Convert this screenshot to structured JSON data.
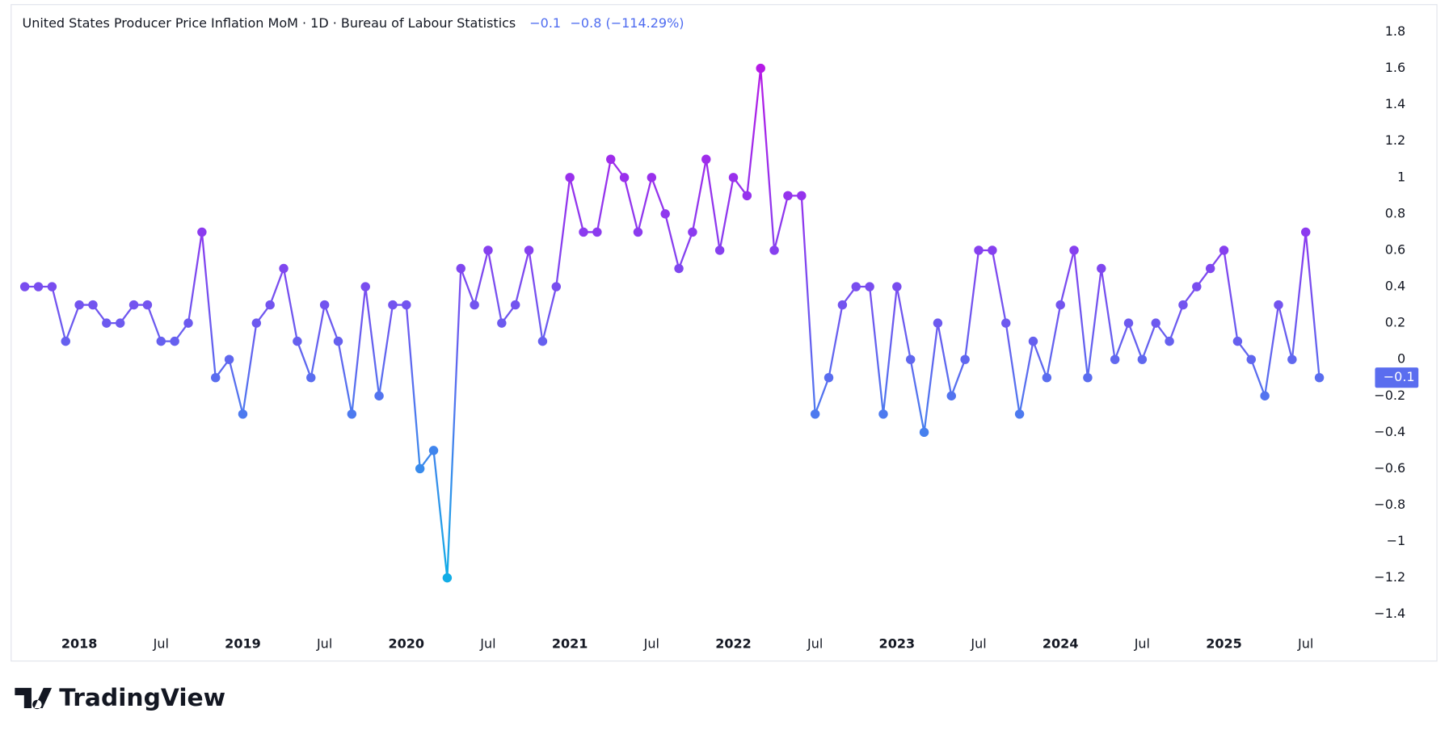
{
  "header": {
    "title": "United States Producer Price Inflation MoM · 1D · Bureau of Labour Statistics",
    "last": "−0.1",
    "change": "−0.8 (−114.29%)"
  },
  "brand": "TradingView",
  "chart_data": {
    "type": "line",
    "x": [
      "2017-09",
      "2017-10",
      "2017-11",
      "2017-12",
      "2018-01",
      "2018-02",
      "2018-03",
      "2018-04",
      "2018-05",
      "2018-06",
      "2018-07",
      "2018-08",
      "2018-09",
      "2018-10",
      "2018-11",
      "2018-12",
      "2019-01",
      "2019-02",
      "2019-03",
      "2019-04",
      "2019-05",
      "2019-06",
      "2019-07",
      "2019-08",
      "2019-09",
      "2019-10",
      "2019-11",
      "2019-12",
      "2020-01",
      "2020-02",
      "2020-03",
      "2020-04",
      "2020-05",
      "2020-06",
      "2020-07",
      "2020-08",
      "2020-09",
      "2020-10",
      "2020-11",
      "2020-12",
      "2021-01",
      "2021-02",
      "2021-03",
      "2021-04",
      "2021-05",
      "2021-06",
      "2021-07",
      "2021-08",
      "2021-09",
      "2021-10",
      "2021-11",
      "2021-12",
      "2022-01",
      "2022-02",
      "2022-03",
      "2022-04",
      "2022-05",
      "2022-06",
      "2022-07",
      "2022-08",
      "2022-09",
      "2022-10",
      "2022-11",
      "2022-12",
      "2023-01",
      "2023-02",
      "2023-03",
      "2023-04",
      "2023-05",
      "2023-06",
      "2023-07",
      "2023-08",
      "2023-09",
      "2023-10",
      "2023-11",
      "2023-12",
      "2024-01",
      "2024-02",
      "2024-03",
      "2024-04",
      "2024-05",
      "2024-06",
      "2024-07",
      "2024-08",
      "2024-09",
      "2024-10",
      "2024-11",
      "2024-12",
      "2025-01",
      "2025-02",
      "2025-03",
      "2025-04",
      "2025-05",
      "2025-06",
      "2025-07",
      "2025-08"
    ],
    "values": [
      0.4,
      0.4,
      0.4,
      0.1,
      0.3,
      0.3,
      0.2,
      0.2,
      0.3,
      0.3,
      0.1,
      0.1,
      0.2,
      0.7,
      -0.1,
      0,
      -0.3,
      0.2,
      0.3,
      0.5,
      0.1,
      -0.1,
      0.3,
      0.1,
      -0.3,
      0.4,
      -0.2,
      0.3,
      0.3,
      -0.6,
      -0.5,
      -1.2,
      0.5,
      0.3,
      0.6,
      0.2,
      0.3,
      0.6,
      0.1,
      0.4,
      1.0,
      0.7,
      0.7,
      1.1,
      1.0,
      0.7,
      1.0,
      0.8,
      0.5,
      0.7,
      1.1,
      0.6,
      1.0,
      0.9,
      1.6,
      0.6,
      0.9,
      0.9,
      -0.3,
      -0.1,
      0.3,
      0.4,
      0.4,
      -0.3,
      0.4,
      0,
      -0.4,
      0.2,
      -0.2,
      0,
      0.6,
      0.6,
      0.2,
      -0.3,
      0.1,
      -0.1,
      0.3,
      0.6,
      -0.1,
      0.5,
      0,
      0.2,
      0,
      0.2,
      0.1,
      0.3,
      0.4,
      0.5,
      0.6,
      0.1,
      0,
      -0.2,
      0.3,
      0,
      0.7,
      -0.1
    ],
    "line_gradient": [
      "#12ade6",
      "#4f78ef",
      "#8a3cef",
      "#b51ae6"
    ],
    "xlim": [
      "2017-08",
      "2025-11"
    ],
    "xticks": [
      {
        "value": "2018-01",
        "label": "2018"
      },
      {
        "value": "2018-07",
        "label": "Jul"
      },
      {
        "value": "2019-01",
        "label": "2019"
      },
      {
        "value": "2019-07",
        "label": "Jul"
      },
      {
        "value": "2020-01",
        "label": "2020"
      },
      {
        "value": "2020-07",
        "label": "Jul"
      },
      {
        "value": "2021-01",
        "label": "2021"
      },
      {
        "value": "2021-07",
        "label": "Jul"
      },
      {
        "value": "2022-01",
        "label": "2022"
      },
      {
        "value": "2022-07",
        "label": "Jul"
      },
      {
        "value": "2023-01",
        "label": "2023"
      },
      {
        "value": "2023-07",
        "label": "Jul"
      },
      {
        "value": "2024-01",
        "label": "2024"
      },
      {
        "value": "2024-07",
        "label": "Jul"
      },
      {
        "value": "2025-01",
        "label": "2025"
      },
      {
        "value": "2025-07",
        "label": "Jul"
      }
    ],
    "ylim": [
      -1.5,
      1.95
    ],
    "yticks": [
      1.8,
      1.6,
      1.4,
      1.2,
      1,
      0.8,
      0.6,
      0.4,
      0.2,
      0,
      {
        "value": -0.2,
        "label": "−0.2"
      },
      {
        "value": -0.4,
        "label": "−0.4"
      },
      {
        "value": -0.6,
        "label": "−0.6"
      },
      {
        "value": -0.8,
        "label": "−0.8"
      },
      {
        "value": -1,
        "label": "−1"
      },
      {
        "value": -1.2,
        "label": "−1.2"
      },
      {
        "value": -1.4,
        "label": "−1.4"
      }
    ]
  }
}
